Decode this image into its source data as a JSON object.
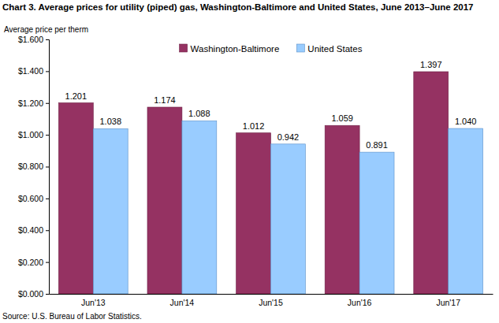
{
  "chart_data": {
    "type": "bar",
    "title": "Chart 3. Average prices for utility (piped) gas, Washington-Baltimore  and United States, June 2013–June 2017",
    "y_label": "Average price per therm",
    "source": "Source: U.S. Bureau of Labor Statistics.",
    "categories": [
      "Jun'13",
      "Jun'14",
      "Jun'15",
      "Jun'16",
      "Jun'17"
    ],
    "series": [
      {
        "name": "Washington-Baltimore",
        "color": "#953262",
        "values": [
          1.201,
          1.174,
          1.012,
          1.059,
          1.397
        ],
        "value_labels": [
          "1.201",
          "1.174",
          "1.012",
          "1.059",
          "1.397"
        ]
      },
      {
        "name": "United States",
        "color": "#99ccff",
        "values": [
          1.038,
          1.088,
          0.942,
          0.891,
          1.04
        ],
        "value_labels": [
          "1.038",
          "1.088",
          "0.942",
          "0.891",
          "1.040"
        ]
      }
    ],
    "ylim": [
      0,
      1.6
    ],
    "yticks": [
      {
        "value": 0,
        "label": "$0.000"
      },
      {
        "value": 0.2,
        "label": "$0.200"
      },
      {
        "value": 0.4,
        "label": "$0.400"
      },
      {
        "value": 0.6,
        "label": "$0.600"
      },
      {
        "value": 0.8,
        "label": "$0.800"
      },
      {
        "value": 1.0,
        "label": "$1.000"
      },
      {
        "value": 1.2,
        "label": "$1.200"
      },
      {
        "value": 1.4,
        "label": "$1.400"
      },
      {
        "value": 1.6,
        "label": "$1.600"
      }
    ],
    "grid": false,
    "legend": "top",
    "data_labels": true
  }
}
